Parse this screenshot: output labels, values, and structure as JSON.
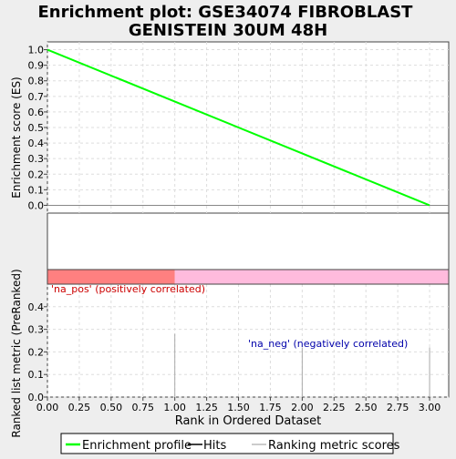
{
  "chart_data": {
    "type": "line",
    "title": "Enrichment plot: GSE34074 FIBROBLAST GENISTEIN 30UM 48H",
    "title_lines": [
      "Enrichment plot: GSE34074 FIBROBLAST",
      "GENISTEIN 30UM 48H"
    ],
    "xlabel": "Rank in Ordered Dataset",
    "es_panel": {
      "ylabel": "Enrichment score (ES)",
      "ylim": [
        -0.05,
        1.05
      ],
      "yticks": [
        "0.0",
        "0.1",
        "0.2",
        "0.3",
        "0.4",
        "0.5",
        "0.6",
        "0.7",
        "0.8",
        "0.9",
        "1.0"
      ],
      "series": [
        {
          "name": "Enrichment profile",
          "color": "#00ff00",
          "x": [
            0,
            3
          ],
          "y": [
            1.0,
            0.0
          ]
        }
      ]
    },
    "metric_panel": {
      "ylabel": "Ranked list metric (PreRanked)",
      "ylim": [
        0,
        0.5
      ],
      "yticks": [
        "0.0",
        "0.1",
        "0.2",
        "0.3",
        "0.4"
      ],
      "bars": {
        "x": [
          1,
          2,
          3
        ],
        "values": [
          0.28,
          0.22,
          0.22
        ],
        "color": "#aaaaaa"
      }
    },
    "heatmap_bar": {
      "pos_color": "#ff8080",
      "neg_color": "#ffbbdd",
      "split_x": 1.0
    },
    "xlim": [
      0,
      3.15
    ],
    "xticks": [
      "0.00",
      "0.25",
      "0.50",
      "0.75",
      "1.00",
      "1.25",
      "1.50",
      "1.75",
      "2.00",
      "2.25",
      "2.50",
      "2.75",
      "3.00"
    ],
    "annotations": {
      "pos": {
        "text": "'na_pos' (positively correlated)",
        "color": "#cc0000"
      },
      "neg": {
        "text": "'na_neg' (negatively correlated)",
        "color": "#0000aa"
      }
    },
    "legend": {
      "placement": "bottom",
      "items": [
        {
          "label": "Enrichment profile",
          "color": "#00ff00"
        },
        {
          "label": "Hits",
          "color": "#000000"
        },
        {
          "label": "Ranking metric scores",
          "color": "#bbbbbb"
        }
      ]
    },
    "grid": true
  }
}
